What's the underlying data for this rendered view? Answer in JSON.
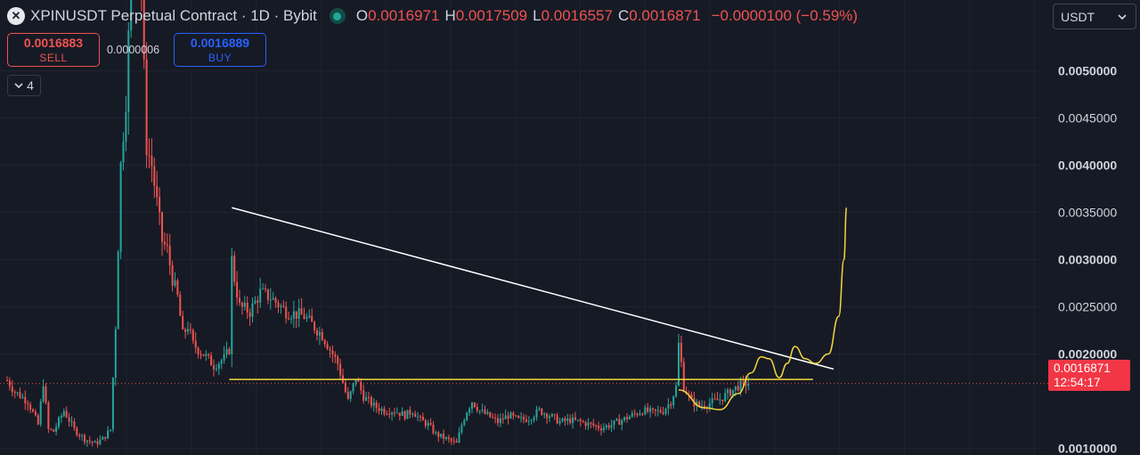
{
  "header": {
    "title": "XPINUSDT Perpetual Contract · 1D · Bybit",
    "ohlc": {
      "o_label": "O",
      "o_value": "0.0016971",
      "h_label": "H",
      "h_value": "0.0017509",
      "l_label": "L",
      "l_value": "0.0016557",
      "c_label": "C",
      "c_value": "0.0016871",
      "change": "−0.0000100 (−0.59%)"
    }
  },
  "trade": {
    "sell_price": "0.0016883",
    "sell_label": "SELL",
    "spread": "0.0000006",
    "buy_price": "0.0016889",
    "buy_label": "BUY"
  },
  "indicators_toggle": {
    "count": "4"
  },
  "currency_select": {
    "value": "USDT"
  },
  "last_price": {
    "value": "0.0016871",
    "countdown": "12:54:17"
  },
  "colors": {
    "background": "#161a25",
    "up": "#26a69a",
    "down": "#ef5350",
    "trendline": "#ffffff",
    "support": "#f5d63c",
    "projection": "#f5d63c"
  },
  "chart_data": {
    "type": "candlestick",
    "symbol": "XPINUSDT",
    "interval": "1D",
    "y_axis": {
      "range": [
        0.00093,
        0.00575
      ],
      "ticks": [
        "0.0050000",
        "0.0045000",
        "0.0040000",
        "0.0035000",
        "0.0030000",
        "0.0025000",
        "0.0020000",
        "0.0010000"
      ],
      "tick_values": [
        0.005,
        0.0045,
        0.004,
        0.0035,
        0.003,
        0.0025,
        0.002,
        0.001
      ],
      "bold_ticks": [
        0.005,
        0.004,
        0.003,
        0.002,
        0.001
      ]
    },
    "price_path": [
      [
        0,
        0.00172
      ],
      [
        3,
        0.0016
      ],
      [
        8,
        0.0015
      ],
      [
        12,
        0.00125
      ],
      [
        14,
        0.0017
      ],
      [
        16,
        0.0012
      ],
      [
        18,
        0.00118
      ],
      [
        22,
        0.0014
      ],
      [
        26,
        0.0012
      ],
      [
        30,
        0.0011
      ],
      [
        34,
        0.00105
      ],
      [
        37,
        0.0011
      ],
      [
        40,
        0.0012
      ],
      [
        42,
        0.0023
      ],
      [
        44,
        0.004
      ],
      [
        46,
        0.0047
      ],
      [
        48,
        0.006
      ],
      [
        50,
        0.0062
      ],
      [
        52,
        0.0058
      ],
      [
        54,
        0.0042
      ],
      [
        56,
        0.004
      ],
      [
        58,
        0.0036
      ],
      [
        60,
        0.0032
      ],
      [
        62,
        0.0031
      ],
      [
        64,
        0.0028
      ],
      [
        66,
        0.0026
      ],
      [
        68,
        0.0022
      ],
      [
        70,
        0.0023
      ],
      [
        72,
        0.0021
      ],
      [
        76,
        0.002
      ],
      [
        80,
        0.00188
      ],
      [
        84,
        0.00195
      ],
      [
        86,
        0.00205
      ],
      [
        87,
        0.003
      ],
      [
        88,
        0.0028
      ],
      [
        90,
        0.0025
      ],
      [
        94,
        0.00245
      ],
      [
        98,
        0.00265
      ],
      [
        102,
        0.0026
      ],
      [
        108,
        0.00245
      ],
      [
        115,
        0.0024
      ],
      [
        122,
        0.0022
      ],
      [
        128,
        0.0019
      ],
      [
        132,
        0.0015
      ],
      [
        135,
        0.00175
      ],
      [
        138,
        0.00155
      ],
      [
        142,
        0.00145
      ],
      [
        146,
        0.0014
      ],
      [
        150,
        0.0014
      ],
      [
        154,
        0.00135
      ],
      [
        157,
        0.0014
      ],
      [
        160,
        0.0013
      ],
      [
        163,
        0.00125
      ],
      [
        166,
        0.00115
      ],
      [
        170,
        0.0011
      ],
      [
        174,
        0.00105
      ],
      [
        176,
        0.00125
      ],
      [
        178,
        0.0014
      ],
      [
        180,
        0.0015
      ],
      [
        183,
        0.0014
      ],
      [
        186,
        0.00135
      ],
      [
        190,
        0.00128
      ],
      [
        194,
        0.00135
      ],
      [
        198,
        0.0013
      ],
      [
        202,
        0.00132
      ],
      [
        206,
        0.0014
      ],
      [
        210,
        0.00135
      ],
      [
        214,
        0.00128
      ],
      [
        218,
        0.0013
      ],
      [
        222,
        0.00128
      ],
      [
        226,
        0.00125
      ],
      [
        230,
        0.00122
      ],
      [
        234,
        0.00125
      ],
      [
        238,
        0.0013
      ],
      [
        242,
        0.00135
      ],
      [
        246,
        0.0014
      ],
      [
        250,
        0.00138
      ],
      [
        254,
        0.0014
      ],
      [
        257,
        0.0015
      ],
      [
        259,
        0.00165
      ],
      [
        260,
        0.0021
      ],
      [
        261,
        0.0019
      ],
      [
        262,
        0.00165
      ],
      [
        265,
        0.0015
      ],
      [
        268,
        0.00145
      ],
      [
        272,
        0.00148
      ],
      [
        276,
        0.00152
      ],
      [
        280,
        0.0016
      ],
      [
        284,
        0.00168
      ],
      [
        287,
        0.00169
      ]
    ],
    "drawings": [
      {
        "kind": "trendline",
        "from": [
          87,
          0.00355
        ],
        "to": [
          320,
          0.00184
        ]
      },
      {
        "kind": "horizontal-support",
        "price": 0.00173,
        "from_index": 86,
        "to_index": 312
      },
      {
        "kind": "rounded-bottom",
        "points": [
          [
            260,
            0.00162
          ],
          [
            270,
            0.00143
          ],
          [
            276,
            0.00141
          ],
          [
            283,
            0.00158
          ],
          [
            288,
            0.0018
          ]
        ]
      },
      {
        "kind": "projection-path",
        "points": [
          [
            288,
            0.0018
          ],
          [
            292,
            0.00197
          ],
          [
            295,
            0.00195
          ],
          [
            299,
            0.00175
          ],
          [
            302,
            0.0019
          ],
          [
            305,
            0.00208
          ],
          [
            309,
            0.00195
          ],
          [
            313,
            0.0019
          ],
          [
            318,
            0.002
          ],
          [
            322,
            0.0024
          ],
          [
            324,
            0.003
          ],
          [
            325,
            0.00355
          ]
        ]
      }
    ],
    "last_price_line": 0.0016871
  }
}
